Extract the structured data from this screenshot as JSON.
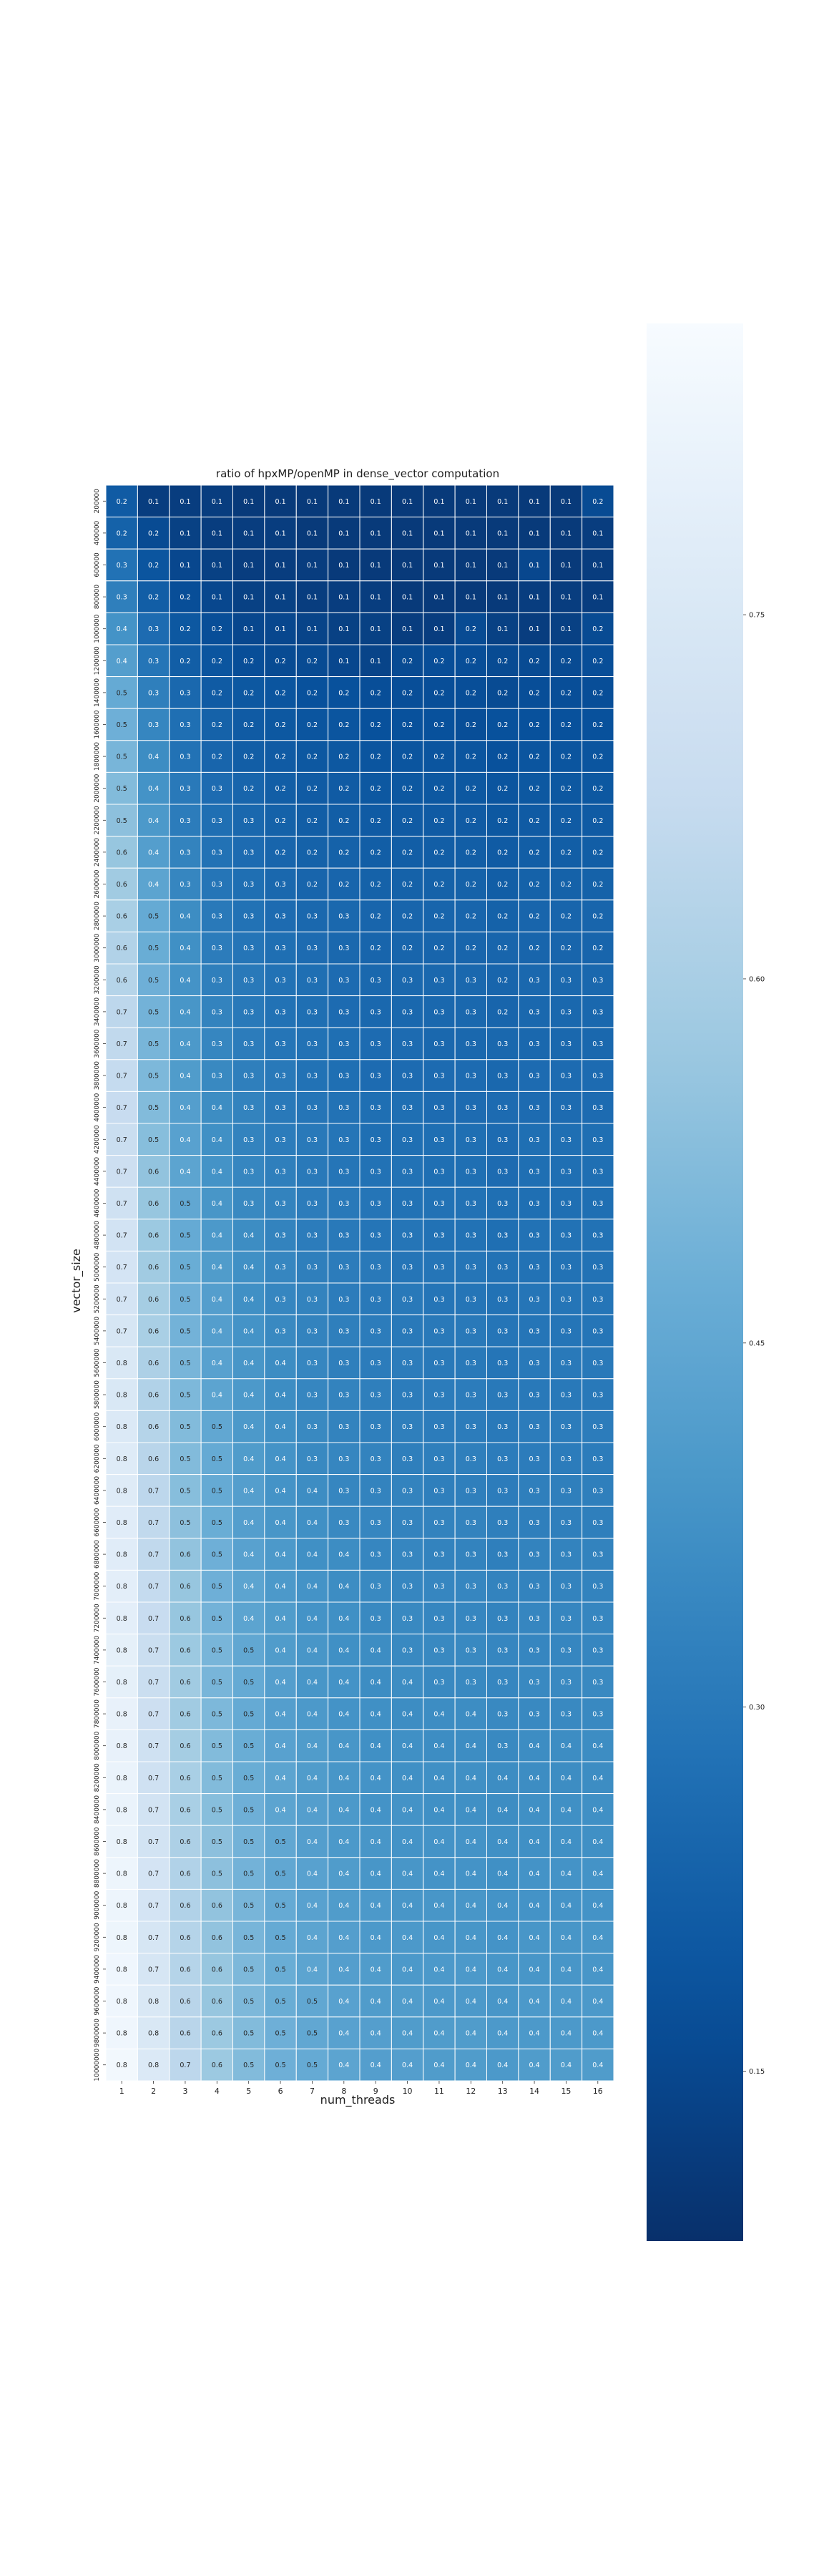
{
  "chart_data": {
    "type": "heatmap",
    "title": "ratio of hpxMP/openMP in dense_vector computation",
    "xlabel": "num_threads",
    "ylabel": "vector_size",
    "x_categories": [
      "1",
      "2",
      "3",
      "4",
      "5",
      "6",
      "7",
      "8",
      "9",
      "10",
      "11",
      "12",
      "13",
      "14",
      "15",
      "16"
    ],
    "y_categories": [
      "200000",
      "400000",
      "600000",
      "800000",
      "1000000",
      "1200000",
      "1400000",
      "1600000",
      "1800000",
      "2000000",
      "2200000",
      "2400000",
      "2600000",
      "2800000",
      "3000000",
      "3200000",
      "3400000",
      "3600000",
      "3800000",
      "4000000",
      "4200000",
      "4400000",
      "4600000",
      "4800000",
      "5000000",
      "5200000",
      "5400000",
      "5600000",
      "5800000",
      "6000000",
      "6200000",
      "6400000",
      "6600000",
      "6800000",
      "7000000",
      "7200000",
      "7400000",
      "7600000",
      "7800000",
      "8000000",
      "8200000",
      "8400000",
      "8600000",
      "8800000",
      "9000000",
      "9200000",
      "9400000",
      "9600000",
      "9800000",
      "10000000"
    ],
    "values": [
      [
        0.21,
        0.12,
        0.12,
        0.12,
        0.11,
        0.11,
        0.11,
        0.11,
        0.11,
        0.11,
        0.11,
        0.11,
        0.11,
        0.11,
        0.11,
        0.16
      ],
      [
        0.23,
        0.16,
        0.13,
        0.12,
        0.12,
        0.12,
        0.11,
        0.11,
        0.11,
        0.11,
        0.11,
        0.11,
        0.11,
        0.11,
        0.11,
        0.12
      ],
      [
        0.28,
        0.19,
        0.15,
        0.13,
        0.12,
        0.12,
        0.12,
        0.11,
        0.11,
        0.11,
        0.11,
        0.11,
        0.11,
        0.15,
        0.11,
        0.12
      ],
      [
        0.32,
        0.22,
        0.17,
        0.15,
        0.13,
        0.13,
        0.12,
        0.12,
        0.12,
        0.11,
        0.11,
        0.11,
        0.11,
        0.12,
        0.12,
        0.12
      ],
      [
        0.38,
        0.26,
        0.2,
        0.17,
        0.15,
        0.15,
        0.14,
        0.13,
        0.13,
        0.12,
        0.12,
        0.16,
        0.13,
        0.12,
        0.13,
        0.16
      ],
      [
        0.42,
        0.29,
        0.22,
        0.19,
        0.17,
        0.16,
        0.16,
        0.15,
        0.14,
        0.16,
        0.17,
        0.17,
        0.16,
        0.16,
        0.16,
        0.17
      ],
      [
        0.46,
        0.32,
        0.25,
        0.21,
        0.2,
        0.19,
        0.18,
        0.18,
        0.17,
        0.17,
        0.17,
        0.17,
        0.16,
        0.17,
        0.17,
        0.17
      ],
      [
        0.48,
        0.34,
        0.27,
        0.23,
        0.21,
        0.2,
        0.19,
        0.19,
        0.18,
        0.18,
        0.18,
        0.17,
        0.18,
        0.18,
        0.18,
        0.18
      ],
      [
        0.5,
        0.36,
        0.28,
        0.24,
        0.22,
        0.21,
        0.2,
        0.2,
        0.19,
        0.19,
        0.19,
        0.19,
        0.18,
        0.19,
        0.19,
        0.19
      ],
      [
        0.52,
        0.38,
        0.3,
        0.26,
        0.24,
        0.22,
        0.21,
        0.21,
        0.2,
        0.2,
        0.2,
        0.2,
        0.19,
        0.2,
        0.2,
        0.2
      ],
      [
        0.54,
        0.4,
        0.31,
        0.27,
        0.25,
        0.23,
        0.22,
        0.22,
        0.21,
        0.21,
        0.21,
        0.21,
        0.2,
        0.21,
        0.21,
        0.21
      ],
      [
        0.56,
        0.42,
        0.33,
        0.28,
        0.26,
        0.24,
        0.23,
        0.23,
        0.22,
        0.22,
        0.22,
        0.22,
        0.21,
        0.22,
        0.22,
        0.22
      ],
      [
        0.58,
        0.44,
        0.34,
        0.29,
        0.27,
        0.25,
        0.24,
        0.24,
        0.23,
        0.23,
        0.23,
        0.23,
        0.22,
        0.23,
        0.23,
        0.23
      ],
      [
        0.6,
        0.46,
        0.36,
        0.3,
        0.28,
        0.26,
        0.25,
        0.25,
        0.24,
        0.24,
        0.24,
        0.24,
        0.23,
        0.24,
        0.24,
        0.24
      ],
      [
        0.62,
        0.47,
        0.37,
        0.31,
        0.29,
        0.27,
        0.26,
        0.25,
        0.24,
        0.24,
        0.24,
        0.24,
        0.24,
        0.24,
        0.24,
        0.24
      ],
      [
        0.63,
        0.48,
        0.38,
        0.32,
        0.3,
        0.28,
        0.27,
        0.26,
        0.25,
        0.25,
        0.25,
        0.25,
        0.24,
        0.25,
        0.25,
        0.25
      ],
      [
        0.65,
        0.49,
        0.39,
        0.33,
        0.3,
        0.28,
        0.27,
        0.26,
        0.25,
        0.25,
        0.25,
        0.25,
        0.24,
        0.25,
        0.25,
        0.25
      ],
      [
        0.66,
        0.5,
        0.4,
        0.34,
        0.31,
        0.29,
        0.28,
        0.27,
        0.26,
        0.26,
        0.25,
        0.25,
        0.25,
        0.25,
        0.25,
        0.25
      ],
      [
        0.67,
        0.51,
        0.41,
        0.35,
        0.32,
        0.3,
        0.28,
        0.27,
        0.26,
        0.26,
        0.26,
        0.26,
        0.25,
        0.26,
        0.26,
        0.26
      ],
      [
        0.68,
        0.52,
        0.42,
        0.36,
        0.33,
        0.3,
        0.29,
        0.28,
        0.27,
        0.27,
        0.26,
        0.26,
        0.26,
        0.26,
        0.26,
        0.26
      ],
      [
        0.69,
        0.53,
        0.43,
        0.37,
        0.33,
        0.31,
        0.3,
        0.29,
        0.27,
        0.27,
        0.27,
        0.27,
        0.26,
        0.27,
        0.27,
        0.27
      ],
      [
        0.7,
        0.55,
        0.44,
        0.38,
        0.34,
        0.32,
        0.3,
        0.29,
        0.28,
        0.28,
        0.27,
        0.27,
        0.26,
        0.27,
        0.27,
        0.27
      ],
      [
        0.71,
        0.56,
        0.45,
        0.39,
        0.35,
        0.33,
        0.31,
        0.3,
        0.29,
        0.28,
        0.28,
        0.28,
        0.27,
        0.27,
        0.27,
        0.27
      ],
      [
        0.72,
        0.57,
        0.46,
        0.4,
        0.36,
        0.33,
        0.31,
        0.3,
        0.29,
        0.29,
        0.28,
        0.28,
        0.27,
        0.28,
        0.28,
        0.28
      ],
      [
        0.73,
        0.58,
        0.47,
        0.41,
        0.37,
        0.34,
        0.32,
        0.31,
        0.3,
        0.29,
        0.29,
        0.29,
        0.28,
        0.28,
        0.28,
        0.28
      ],
      [
        0.73,
        0.59,
        0.48,
        0.42,
        0.37,
        0.34,
        0.33,
        0.31,
        0.3,
        0.3,
        0.29,
        0.29,
        0.28,
        0.29,
        0.29,
        0.29
      ],
      [
        0.74,
        0.6,
        0.49,
        0.42,
        0.38,
        0.35,
        0.33,
        0.32,
        0.31,
        0.3,
        0.3,
        0.3,
        0.29,
        0.29,
        0.29,
        0.29
      ],
      [
        0.75,
        0.61,
        0.5,
        0.43,
        0.39,
        0.36,
        0.34,
        0.32,
        0.31,
        0.31,
        0.3,
        0.3,
        0.29,
        0.3,
        0.3,
        0.3
      ],
      [
        0.75,
        0.62,
        0.51,
        0.44,
        0.4,
        0.36,
        0.34,
        0.33,
        0.32,
        0.31,
        0.31,
        0.31,
        0.3,
        0.3,
        0.3,
        0.3
      ],
      [
        0.76,
        0.63,
        0.52,
        0.45,
        0.4,
        0.37,
        0.35,
        0.33,
        0.32,
        0.32,
        0.31,
        0.31,
        0.3,
        0.31,
        0.31,
        0.31
      ],
      [
        0.77,
        0.64,
        0.52,
        0.46,
        0.41,
        0.38,
        0.35,
        0.34,
        0.33,
        0.32,
        0.32,
        0.32,
        0.31,
        0.31,
        0.31,
        0.31
      ],
      [
        0.77,
        0.65,
        0.53,
        0.46,
        0.42,
        0.38,
        0.36,
        0.34,
        0.33,
        0.33,
        0.32,
        0.32,
        0.31,
        0.32,
        0.32,
        0.32
      ],
      [
        0.78,
        0.66,
        0.54,
        0.47,
        0.42,
        0.39,
        0.37,
        0.35,
        0.34,
        0.33,
        0.33,
        0.33,
        0.32,
        0.32,
        0.32,
        0.32
      ],
      [
        0.78,
        0.66,
        0.55,
        0.48,
        0.43,
        0.4,
        0.37,
        0.36,
        0.34,
        0.34,
        0.33,
        0.33,
        0.32,
        0.33,
        0.33,
        0.33
      ],
      [
        0.79,
        0.67,
        0.56,
        0.48,
        0.44,
        0.4,
        0.38,
        0.36,
        0.35,
        0.34,
        0.34,
        0.34,
        0.33,
        0.33,
        0.33,
        0.33
      ],
      [
        0.79,
        0.68,
        0.56,
        0.49,
        0.44,
        0.41,
        0.38,
        0.37,
        0.35,
        0.35,
        0.34,
        0.34,
        0.33,
        0.34,
        0.34,
        0.34
      ],
      [
        0.8,
        0.69,
        0.57,
        0.5,
        0.45,
        0.41,
        0.39,
        0.37,
        0.36,
        0.35,
        0.35,
        0.35,
        0.34,
        0.34,
        0.34,
        0.34
      ],
      [
        0.8,
        0.69,
        0.58,
        0.5,
        0.46,
        0.42,
        0.39,
        0.38,
        0.36,
        0.36,
        0.35,
        0.35,
        0.34,
        0.35,
        0.35,
        0.35
      ],
      [
        0.81,
        0.7,
        0.58,
        0.51,
        0.46,
        0.42,
        0.4,
        0.38,
        0.37,
        0.36,
        0.36,
        0.36,
        0.35,
        0.35,
        0.35,
        0.35
      ],
      [
        0.81,
        0.71,
        0.59,
        0.52,
        0.47,
        0.43,
        0.41,
        0.39,
        0.37,
        0.37,
        0.36,
        0.36,
        0.35,
        0.36,
        0.36,
        0.36
      ],
      [
        0.82,
        0.71,
        0.6,
        0.52,
        0.47,
        0.44,
        0.41,
        0.39,
        0.38,
        0.37,
        0.37,
        0.37,
        0.36,
        0.36,
        0.36,
        0.36
      ],
      [
        0.82,
        0.72,
        0.6,
        0.53,
        0.48,
        0.44,
        0.42,
        0.4,
        0.38,
        0.38,
        0.37,
        0.37,
        0.36,
        0.37,
        0.37,
        0.37
      ],
      [
        0.82,
        0.72,
        0.61,
        0.54,
        0.49,
        0.45,
        0.42,
        0.4,
        0.39,
        0.38,
        0.38,
        0.38,
        0.37,
        0.37,
        0.37,
        0.37
      ],
      [
        0.83,
        0.73,
        0.62,
        0.54,
        0.49,
        0.45,
        0.43,
        0.41,
        0.39,
        0.39,
        0.38,
        0.38,
        0.37,
        0.38,
        0.38,
        0.38
      ],
      [
        0.83,
        0.73,
        0.62,
        0.55,
        0.5,
        0.46,
        0.43,
        0.41,
        0.4,
        0.39,
        0.39,
        0.39,
        0.38,
        0.38,
        0.38,
        0.38
      ],
      [
        0.83,
        0.74,
        0.63,
        0.55,
        0.5,
        0.46,
        0.44,
        0.42,
        0.4,
        0.4,
        0.39,
        0.39,
        0.38,
        0.39,
        0.39,
        0.39
      ],
      [
        0.84,
        0.74,
        0.63,
        0.56,
        0.51,
        0.47,
        0.44,
        0.42,
        0.41,
        0.4,
        0.4,
        0.4,
        0.39,
        0.39,
        0.39,
        0.39
      ],
      [
        0.84,
        0.75,
        0.64,
        0.56,
        0.51,
        0.47,
        0.45,
        0.43,
        0.41,
        0.41,
        0.4,
        0.4,
        0.39,
        0.4,
        0.4,
        0.4
      ],
      [
        0.84,
        0.75,
        0.64,
        0.57,
        0.52,
        0.48,
        0.45,
        0.43,
        0.42,
        0.41,
        0.41,
        0.41,
        0.4,
        0.4,
        0.4,
        0.4
      ],
      [
        0.85,
        0.76,
        0.65,
        0.57,
        0.52,
        0.48,
        0.46,
        0.44,
        0.42,
        0.42,
        0.41,
        0.41,
        0.4,
        0.41,
        0.41,
        0.41
      ]
    ],
    "cell_label_decimals": 1,
    "colorscale": "Blues_r",
    "vmin": 0.08,
    "vmax": 0.87,
    "colorbar_ticks": [
      0.15,
      0.3,
      0.45,
      0.6,
      0.75
    ],
    "colorbar_tick_labels": [
      "0.15",
      "0.30",
      "0.45",
      "0.60",
      "0.75"
    ]
  }
}
